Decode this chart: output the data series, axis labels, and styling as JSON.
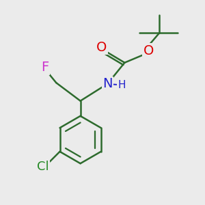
{
  "bg_color": "#ebebeb",
  "bond_color": "#2d6b2d",
  "bond_width": 1.8,
  "atom_colors": {
    "F": "#cc33cc",
    "O": "#dd0000",
    "N": "#2222cc",
    "Cl": "#228822"
  },
  "font_size": 14
}
